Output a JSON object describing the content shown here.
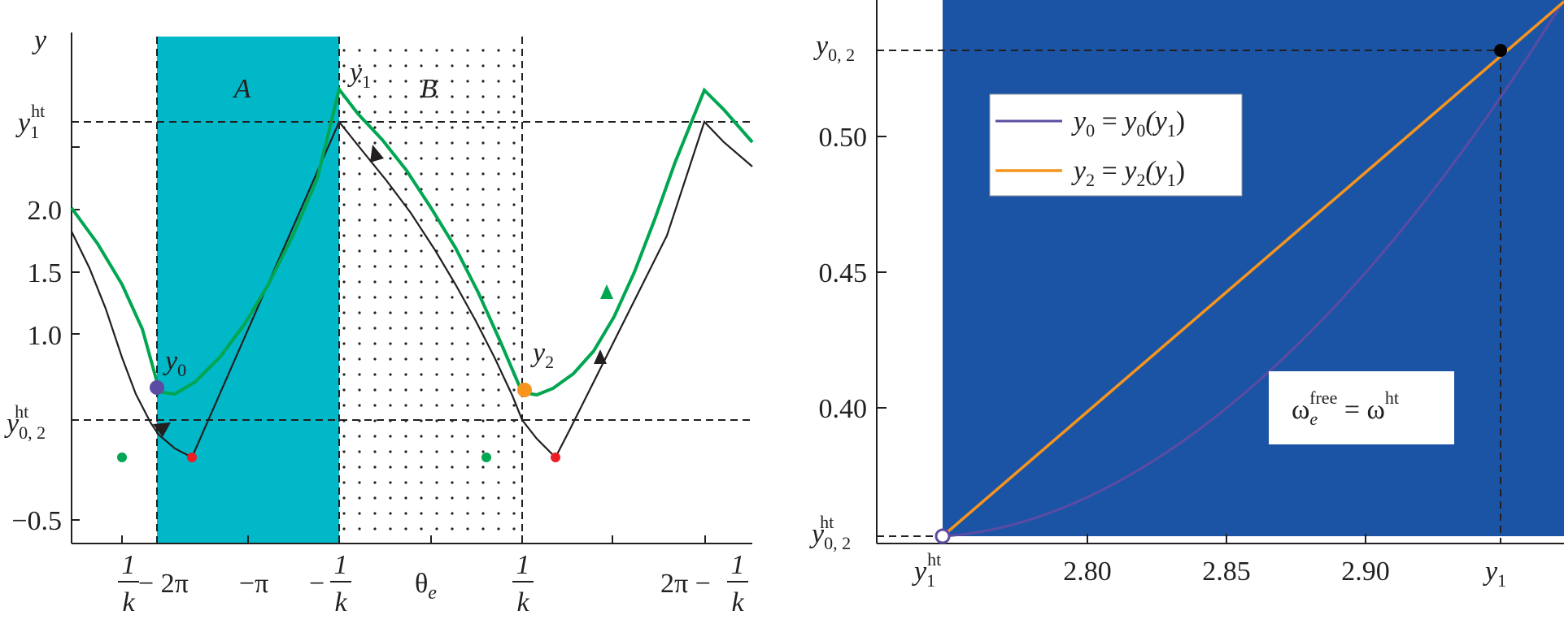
{
  "left_panel": {
    "y_axis_label": "y",
    "y_ticks": [
      "2.0",
      "1.5",
      "1.0",
      "−0.5"
    ],
    "y_hlines": {
      "y1ht": "y",
      "y1ht_sub": "1",
      "y1ht_sup": "ht",
      "y02ht": "y",
      "y02ht_sub": "0, 2",
      "y02ht_sup": "ht"
    },
    "regions": {
      "A": "A",
      "B": "B"
    },
    "point_labels": {
      "y0": "y",
      "y0_sub": "0",
      "y1": "y",
      "y1_sub": "1",
      "y2": "y",
      "y2_sub": "2"
    },
    "x_ticks": {
      "t1_num": "1",
      "t1_den": "k",
      "t1_rest": " − 2π",
      "t2": "−π",
      "t3_sign": "−",
      "t3_num": "1",
      "t3_den": "k",
      "t4": "θ",
      "t4_sub": "e",
      "t5_num": "1",
      "t5_den": "k",
      "t6_rest": "2π − ",
      "t6_num": "1",
      "t6_den": "k"
    },
    "colors": {
      "region_A": "#00b8c8",
      "green_curve": "#00a651",
      "black_curve": "#231f20",
      "y0_point": "#5b4ba3",
      "y2_point": "#f7941d",
      "red_point": "#ed1c24",
      "green_point": "#00a651"
    }
  },
  "right_panel": {
    "y_ticks": [
      "0.50",
      "0.45",
      "0.40"
    ],
    "y_labels": {
      "y02": "y",
      "y02_sub": "0, 2",
      "y02ht": "y",
      "y02ht_sub": "0, 2",
      "y02ht_sup": "ht"
    },
    "x_ticks": [
      "2.80",
      "2.85",
      "2.90"
    ],
    "x_labels": {
      "y1ht": "y",
      "y1ht_sub": "1",
      "y1ht_sup": "ht",
      "y1": "y",
      "y1_sub": "1"
    },
    "legend": [
      {
        "lhs": "y",
        "lhs_sub": "0",
        "eq": " = ",
        "rhs": "y",
        "rhs_sub": "0",
        "arg": "(y",
        "arg_sub": "1",
        "close": ")",
        "color": "#5b4ba3"
      },
      {
        "lhs": "y",
        "lhs_sub": "2",
        "eq": " = ",
        "rhs": "y",
        "rhs_sub": "2",
        "arg": "(y",
        "arg_sub": "1",
        "close": ")",
        "color": "#f7941d"
      }
    ],
    "annotation": {
      "omega": "ω",
      "sub": "e",
      "sup": "free",
      "eq": " = ω",
      "sup2": "ht"
    },
    "colors": {
      "background": "#1b54a4",
      "orange_line": "#f7941d",
      "purple_curve": "#5b4ba3"
    }
  },
  "chart_data": [
    {
      "type": "line",
      "title": "",
      "xlabel": "",
      "ylabel": "y",
      "x_tick_labels": [
        "1/k − 2π",
        "−π",
        "−1/k",
        "θe",
        "1/k",
        "2π − 1/k"
      ],
      "y_tick_labels": [
        "2.0",
        "1.5",
        "1.0",
        "−0.5"
      ],
      "regions": [
        "A",
        "B"
      ],
      "series": []
    },
    {
      "type": "line",
      "title": "",
      "xlabel": "",
      "ylabel": "",
      "xlim": [
        2.775,
        2.925
      ],
      "ylim": [
        0.355,
        0.555
      ],
      "x_tick_labels": [
        "2.80",
        "2.85",
        "2.90"
      ],
      "y_tick_labels": [
        "0.50",
        "0.45",
        "0.40"
      ],
      "series": [
        {
          "name": "y0 = y0(y1)",
          "x": [
            2.775,
            2.8,
            2.85,
            2.9,
            2.925
          ],
          "y": [
            0.358,
            0.362,
            0.395,
            0.46,
            0.535
          ]
        },
        {
          "name": "y2 = y2(y1)",
          "x": [
            2.775,
            2.8,
            2.85,
            2.9,
            2.925
          ],
          "y": [
            0.358,
            0.389,
            0.452,
            0.514,
            0.535
          ]
        }
      ]
    }
  ]
}
